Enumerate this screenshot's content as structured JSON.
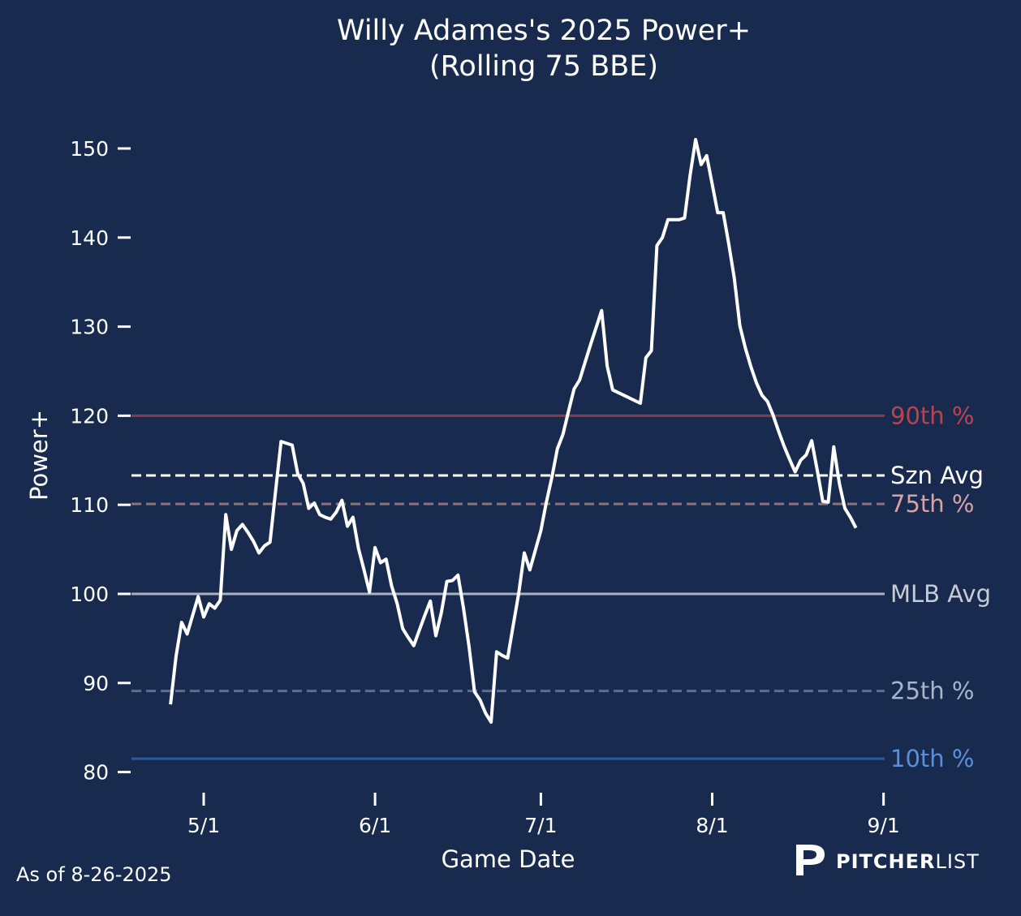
{
  "chart_data": {
    "type": "line",
    "title": "Willy Adames's 2025 Power+",
    "subtitle": "(Rolling 75 BBE)",
    "xlabel": "Game Date",
    "ylabel": "Power+",
    "ylim": [
      78,
      154
    ],
    "x_ticks": [
      "5/1",
      "6/1",
      "7/1",
      "8/1",
      "9/1"
    ],
    "y_ticks": [
      80,
      90,
      100,
      110,
      120,
      130,
      140,
      150
    ],
    "grid": false,
    "reference_lines": [
      {
        "label": "90th %",
        "value": 120,
        "color": "#8a3a48",
        "label_color": "#b84450",
        "dash": false
      },
      {
        "label": "Szn Avg",
        "value": 113.3,
        "color": "#ffffff",
        "label_color": "#ffffff",
        "dash": true
      },
      {
        "label": "75th %",
        "value": 110.1,
        "color": "#8a7480",
        "label_color": "#d9a3a5",
        "dash": true
      },
      {
        "label": "MLB Avg",
        "value": 100,
        "color": "#a9b0bf",
        "label_color": "#c7cbd6",
        "dash": false
      },
      {
        "label": "25th %",
        "value": 89.1,
        "color": "#5d6f90",
        "label_color": "#a8b5cb",
        "dash": true
      },
      {
        "label": "10th %",
        "value": 81.5,
        "color": "#2a5ba0",
        "label_color": "#5b8ed8",
        "dash": false
      }
    ],
    "series": [
      {
        "color": "#ffffff",
        "points": [
          [
            "4-25",
            87.6
          ],
          [
            "4-26",
            93.0
          ],
          [
            "4-27",
            96.8
          ],
          [
            "4-28",
            95.5
          ],
          [
            "4-29",
            97.6
          ],
          [
            "4-30",
            99.7
          ],
          [
            "5-01",
            97.4
          ],
          [
            "5-02",
            98.9
          ],
          [
            "5-03",
            98.4
          ],
          [
            "5-04",
            99.3
          ],
          [
            "5-05",
            108.9
          ],
          [
            "5-06",
            105.0
          ],
          [
            "5-07",
            107.1
          ],
          [
            "5-08",
            107.8
          ],
          [
            "5-09",
            106.9
          ],
          [
            "5-10",
            105.9
          ],
          [
            "5-11",
            104.6
          ],
          [
            "5-12",
            105.4
          ],
          [
            "5-13",
            105.8
          ],
          [
            "5-14",
            111.5
          ],
          [
            "5-15",
            117.1
          ],
          [
            "5-16",
            116.9
          ],
          [
            "5-17",
            116.7
          ],
          [
            "5-18",
            113.5
          ],
          [
            "5-19",
            112.4
          ],
          [
            "5-20",
            109.6
          ],
          [
            "5-21",
            110.2
          ],
          [
            "5-22",
            108.9
          ],
          [
            "5-23",
            108.6
          ],
          [
            "5-24",
            108.4
          ],
          [
            "5-25",
            109.2
          ],
          [
            "5-26",
            110.5
          ],
          [
            "5-27",
            107.6
          ],
          [
            "5-28",
            108.6
          ],
          [
            "5-29",
            105.1
          ],
          [
            "5-30",
            102.7
          ],
          [
            "5-31",
            100.2
          ],
          [
            "6-01",
            105.2
          ],
          [
            "6-02",
            103.5
          ],
          [
            "6-03",
            103.9
          ],
          [
            "6-04",
            100.9
          ],
          [
            "6-05",
            98.9
          ],
          [
            "6-06",
            96.1
          ],
          [
            "6-07",
            95.1
          ],
          [
            "6-08",
            94.2
          ],
          [
            "6-09",
            95.9
          ],
          [
            "6-10",
            97.6
          ],
          [
            "6-11",
            99.2
          ],
          [
            "6-12",
            95.3
          ],
          [
            "6-13",
            97.9
          ],
          [
            "6-14",
            101.4
          ],
          [
            "6-15",
            101.5
          ],
          [
            "6-16",
            102.1
          ],
          [
            "6-17",
            98.4
          ],
          [
            "6-18",
            94.1
          ],
          [
            "6-19",
            89.0
          ],
          [
            "6-20",
            88.1
          ],
          [
            "6-21",
            86.6
          ],
          [
            "6-22",
            85.6
          ],
          [
            "6-23",
            93.5
          ],
          [
            "6-24",
            93.1
          ],
          [
            "6-25",
            92.8
          ],
          [
            "6-26",
            96.5
          ],
          [
            "6-27",
            100.1
          ],
          [
            "6-28",
            104.6
          ],
          [
            "6-29",
            102.7
          ],
          [
            "6-30",
            104.9
          ],
          [
            "7-01",
            107.1
          ],
          [
            "7-02",
            110.3
          ],
          [
            "7-03",
            113.1
          ],
          [
            "7-04",
            116.3
          ],
          [
            "7-05",
            117.9
          ],
          [
            "7-06",
            120.5
          ],
          [
            "7-07",
            123.0
          ],
          [
            "7-08",
            124.0
          ],
          [
            "7-09",
            126.0
          ],
          [
            "7-10",
            128.0
          ],
          [
            "7-11",
            129.9
          ],
          [
            "7-12",
            131.8
          ],
          [
            "7-13",
            125.6
          ],
          [
            "7-14",
            122.9
          ],
          [
            "7-19",
            121.4
          ],
          [
            "7-20",
            126.5
          ],
          [
            "7-21",
            127.3
          ],
          [
            "7-22",
            139.1
          ],
          [
            "7-23",
            140.0
          ],
          [
            "7-24",
            142.0
          ],
          [
            "7-25",
            142.0
          ],
          [
            "7-26",
            142.0
          ],
          [
            "7-27",
            142.2
          ],
          [
            "7-28",
            147.0
          ],
          [
            "7-29",
            151.0
          ],
          [
            "7-30",
            148.2
          ],
          [
            "7-31",
            149.2
          ],
          [
            "8-01",
            146.0
          ],
          [
            "8-02",
            142.8
          ],
          [
            "8-03",
            142.8
          ],
          [
            "8-04",
            139.3
          ],
          [
            "8-05",
            135.4
          ],
          [
            "8-06",
            130.1
          ],
          [
            "8-07",
            127.6
          ],
          [
            "8-08",
            125.5
          ],
          [
            "8-09",
            123.7
          ],
          [
            "8-10",
            122.3
          ],
          [
            "8-11",
            121.6
          ],
          [
            "8-12",
            120.1
          ],
          [
            "8-13",
            118.3
          ],
          [
            "8-14",
            116.6
          ],
          [
            "8-15",
            115.1
          ],
          [
            "8-16",
            113.7
          ],
          [
            "8-17",
            115.0
          ],
          [
            "8-18",
            115.6
          ],
          [
            "8-19",
            117.2
          ],
          [
            "8-20",
            113.9
          ],
          [
            "8-21",
            110.4
          ],
          [
            "8-22",
            110.3
          ],
          [
            "8-23",
            116.5
          ],
          [
            "8-24",
            112.4
          ],
          [
            "8-25",
            109.6
          ],
          [
            "8-26",
            108.6
          ],
          [
            "8-27",
            107.4
          ]
        ]
      }
    ]
  },
  "footer": {
    "as_of": "As of 8-26-2025",
    "brand_bold": "PITCHER",
    "brand_light": "LIST"
  }
}
